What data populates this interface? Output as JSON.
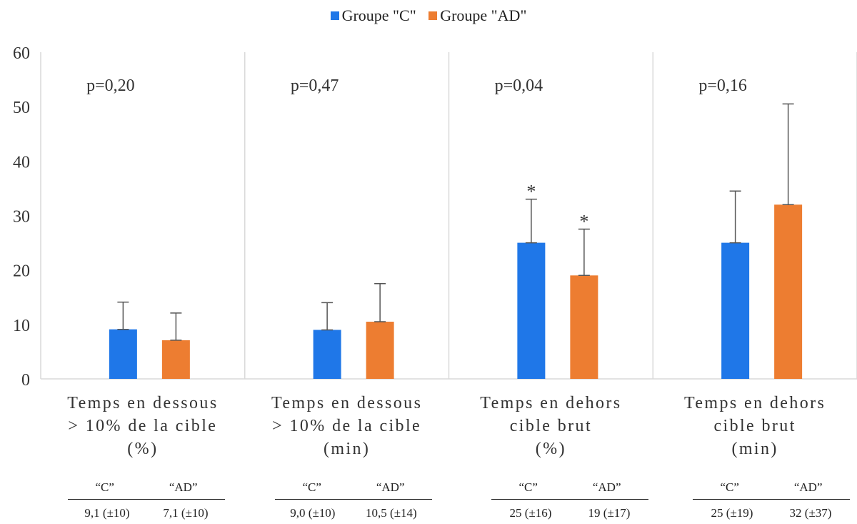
{
  "chart_data": {
    "type": "bar",
    "legend_position": "top-center",
    "ylim": [
      0,
      60
    ],
    "yticks": [
      0,
      10,
      20,
      30,
      40,
      50,
      60
    ],
    "grid": false,
    "series": [
      {
        "name": "Groupe \"C\"",
        "color": "#1f77e8",
        "values": [
          9.1,
          9.0,
          25,
          25
        ],
        "error_plus": [
          5.0,
          5.0,
          8.0,
          9.5
        ]
      },
      {
        "name": "Groupe \"AD\"",
        "color": "#ed7d31",
        "values": [
          7.1,
          10.5,
          19,
          32
        ],
        "error_plus": [
          5.0,
          7.0,
          8.5,
          18.5
        ]
      }
    ],
    "categories": [
      {
        "lines": [
          "Temps en dessous",
          "> 10% de la cible",
          "(%)"
        ],
        "pvalue": "p=0,20",
        "stars": [
          "",
          ""
        ]
      },
      {
        "lines": [
          "Temps en dessous",
          "> 10% de la cible",
          "(min)"
        ],
        "pvalue": "p=0,47",
        "stars": [
          "",
          ""
        ]
      },
      {
        "lines": [
          "Temps en dehors",
          "cible brut",
          "(%)"
        ],
        "pvalue": "p=0,04",
        "stars": [
          "*",
          "*"
        ]
      },
      {
        "lines": [
          "Temps en dehors",
          "cible brut",
          "(min)"
        ],
        "pvalue": "p=0,16",
        "stars": [
          "",
          ""
        ]
      }
    ],
    "stats_tables": [
      {
        "headers": [
          "“C”",
          "“AD”"
        ],
        "values": [
          "9,1 (±10)",
          "7,1 (±10)"
        ]
      },
      {
        "headers": [
          "“C”",
          "“AD”"
        ],
        "values": [
          "9,0 (±10)",
          "10,5 (±14)"
        ]
      },
      {
        "headers": [
          "“C”",
          "“AD”"
        ],
        "values": [
          "25 (±16)",
          "19 (±17)"
        ]
      },
      {
        "headers": [
          "“C”",
          "“AD”"
        ],
        "values": [
          "25 (±19)",
          "32 (±37)"
        ]
      }
    ]
  }
}
